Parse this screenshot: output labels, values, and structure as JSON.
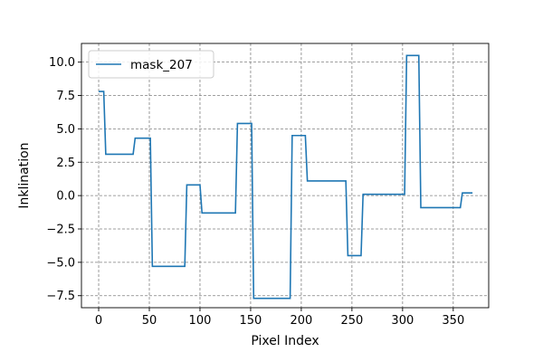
{
  "chart_data": {
    "type": "line",
    "xlabel": "Pixel Index",
    "ylabel": "Inklination",
    "xlim": [
      -17,
      385
    ],
    "ylim": [
      -8.4,
      11.4
    ],
    "xticks": [
      0,
      50,
      100,
      150,
      200,
      250,
      300,
      350
    ],
    "xtick_labels": [
      "0",
      "50",
      "100",
      "150",
      "200",
      "250",
      "300",
      "350"
    ],
    "yticks": [
      -7.5,
      -5.0,
      -2.5,
      0.0,
      2.5,
      5.0,
      7.5,
      10.0
    ],
    "ytick_labels": [
      "−7.5",
      "−5.0",
      "−2.5",
      "0.0",
      "2.5",
      "5.0",
      "7.5",
      "10.0"
    ],
    "grid": true,
    "grid_style": "dashed",
    "legend_position": "upper-left",
    "series": [
      {
        "name": "mask_207",
        "color": "#1f77b4",
        "x": [
          0,
          5,
          7,
          34,
          36,
          51,
          53,
          85,
          87,
          100,
          102,
          135,
          137,
          151,
          153,
          189,
          191,
          204,
          206,
          244,
          246,
          259,
          261,
          302,
          304,
          316,
          318,
          357,
          359,
          369
        ],
        "y": [
          7.8,
          7.8,
          3.1,
          3.1,
          4.3,
          4.3,
          -5.3,
          -5.3,
          0.8,
          0.8,
          -1.3,
          -1.3,
          5.4,
          5.4,
          -7.7,
          -7.7,
          4.5,
          4.5,
          1.1,
          1.1,
          -4.5,
          -4.5,
          0.1,
          0.1,
          10.5,
          10.5,
          -0.9,
          -0.9,
          0.2,
          0.2
        ]
      }
    ]
  }
}
